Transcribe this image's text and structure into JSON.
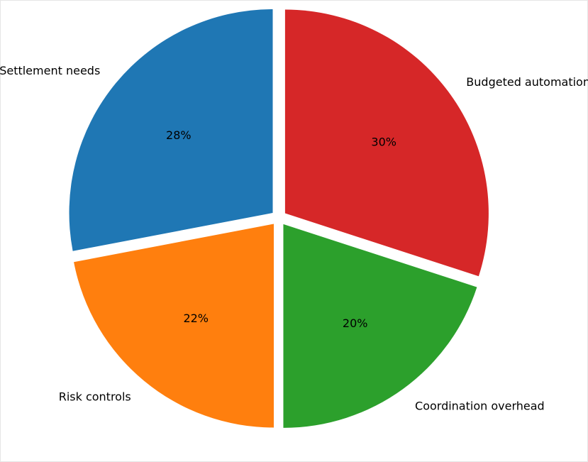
{
  "chart_data": {
    "type": "pie",
    "title": "",
    "start_angle_deg": 90,
    "direction": "counterclockwise",
    "explode": true,
    "slices": [
      {
        "label": "Settlement needs",
        "value": 28,
        "pct_text": "28%",
        "color": "#1f77b4"
      },
      {
        "label": "Risk controls",
        "value": 22,
        "pct_text": "22%",
        "color": "#ff7f0e"
      },
      {
        "label": "Coordination overhead",
        "value": 20,
        "pct_text": "20%",
        "color": "#2ca02c"
      },
      {
        "label": "Budgeted automation",
        "value": 30,
        "pct_text": "30%",
        "color": "#d62728"
      }
    ]
  }
}
